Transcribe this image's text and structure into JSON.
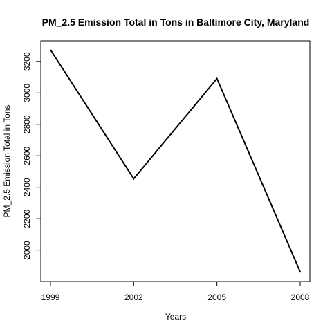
{
  "chart_data": {
    "type": "line",
    "title": "PM_2.5 Emission Total in Tons in Baltimore City, Maryland",
    "xlabel": "Years",
    "ylabel": "PM_2.5 Emission Total in Tons",
    "x": [
      1999,
      2002,
      2005,
      2008
    ],
    "x_tick_labels": [
      "1999",
      "2002",
      "2005",
      "2008"
    ],
    "y_ticks": [
      2000,
      2200,
      2400,
      2600,
      2800,
      3000,
      3200
    ],
    "y_tick_labels": [
      "2000",
      "2200",
      "2400",
      "2600",
      "2800",
      "3000",
      "3200"
    ],
    "series": [
      {
        "values": [
          3274,
          2454,
          3091,
          1862
        ]
      }
    ],
    "xlim": [
      1999,
      2008
    ],
    "ylim": [
      1862,
      3274
    ],
    "grid": false,
    "line_color": "#000000"
  }
}
